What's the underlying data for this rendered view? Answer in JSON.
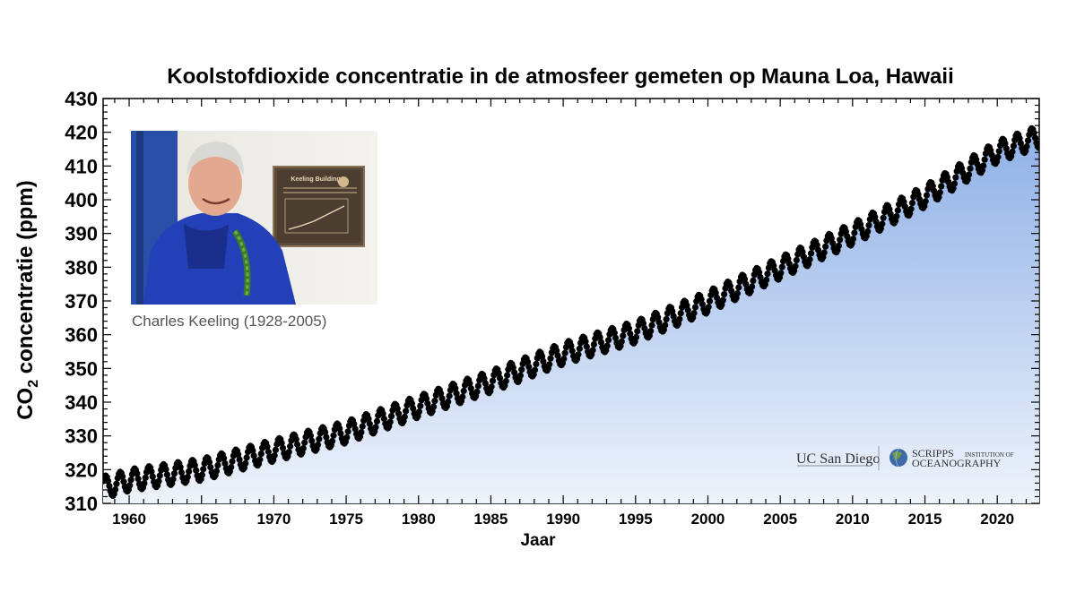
{
  "chart_data": {
    "type": "scatter",
    "title": "Koolstofdioxide concentratie in de atmosfeer gemeten op Mauna Loa, Hawaii",
    "ylabel_main": "CO",
    "ylabel_sub": "2",
    "ylabel_rest": " concentratie (ppm)",
    "xlabel": "Jaar",
    "xlim": [
      1958.2,
      2022.9
    ],
    "ylim": [
      310,
      430
    ],
    "x_ticks": [
      "1960",
      "1965",
      "1970",
      "1975",
      "1980",
      "1985",
      "1990",
      "1995",
      "2000",
      "2005",
      "2010",
      "2015",
      "2020"
    ],
    "y_ticks": [
      "310",
      "320",
      "330",
      "340",
      "350",
      "360",
      "370",
      "380",
      "390",
      "400",
      "410",
      "420",
      "430"
    ],
    "series": [
      {
        "marker_color": "#000000",
        "fill_gradient": [
          "#8fb0e6",
          "#eef3fb"
        ],
        "trend_points": [
          {
            "year": 1958.5,
            "ppm": 315.0
          },
          {
            "year": 1960,
            "ppm": 316.9
          },
          {
            "year": 1965,
            "ppm": 320.0
          },
          {
            "year": 1970,
            "ppm": 325.7
          },
          {
            "year": 1975,
            "ppm": 331.1
          },
          {
            "year": 1980,
            "ppm": 338.7
          },
          {
            "year": 1985,
            "ppm": 346.1
          },
          {
            "year": 1990,
            "ppm": 354.4
          },
          {
            "year": 1995,
            "ppm": 360.8
          },
          {
            "year": 2000,
            "ppm": 369.7
          },
          {
            "year": 2005,
            "ppm": 379.8
          },
          {
            "year": 2010,
            "ppm": 389.9
          },
          {
            "year": 2015,
            "ppm": 401.0
          },
          {
            "year": 2020,
            "ppm": 414.2
          },
          {
            "year": 2022.8,
            "ppm": 418.6
          }
        ],
        "seasonal_amplitude_ppm": 3.2,
        "peak_month": 5
      }
    ]
  },
  "photo": {
    "caption": "Charles Keeling (1928-2005)",
    "plaque_title": "Keeling Building"
  },
  "logos": {
    "ucsd": "UC San Diego",
    "scripps_main": "SCRIPPS",
    "scripps_small": "INSTITUTION OF",
    "scripps_second": "OCEANOGRAPHY"
  }
}
